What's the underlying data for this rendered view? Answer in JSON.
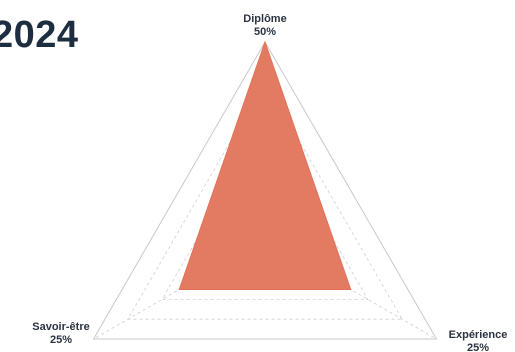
{
  "header": {
    "title": "2024"
  },
  "chart_data": {
    "type": "radar",
    "title": "",
    "axes": [
      {
        "name": "Diplôme",
        "value_label": "50%"
      },
      {
        "name": "Expérience",
        "value_label": "25%"
      },
      {
        "name": "Savoir-être",
        "value_label": "25%"
      }
    ],
    "series": [
      {
        "values": [
          50,
          25,
          25
        ]
      }
    ],
    "range": [
      0,
      50
    ],
    "grid_levels": 5,
    "grid": true,
    "fill_color": "#e2735a",
    "outer_ring_color": "#c9c9c9",
    "grid_color": "#cfcfcf",
    "label_color": "#2b3440"
  }
}
